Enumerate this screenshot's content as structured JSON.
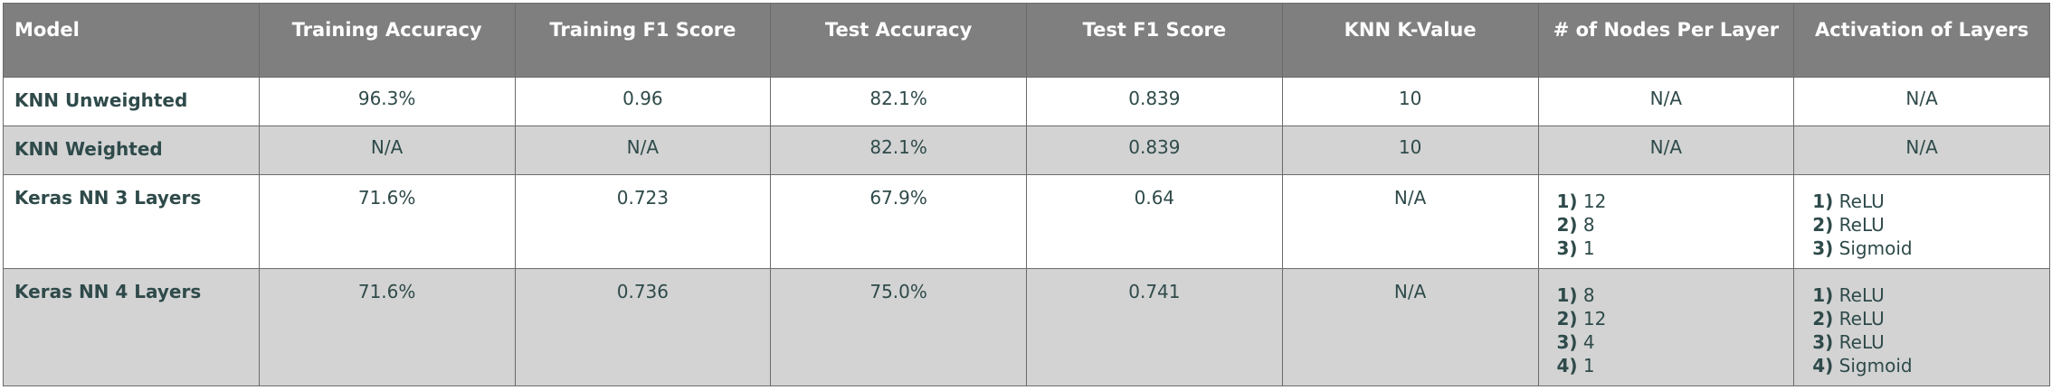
{
  "headers": [
    "Model",
    "Training Accuracy",
    "Training F1 Score",
    "Test Accuracy",
    "Test F1 Score",
    "KNN K-Value",
    "# of Nodes Per Layer",
    "Activation of Layers"
  ],
  "rows": [
    {
      "model": "KNN Unweighted",
      "training_accuracy": "96.3%",
      "training_f1": "0.96",
      "test_accuracy": "82.1%",
      "test_f1": "0.839",
      "knn_k": "10",
      "nodes": "N/A",
      "activation": "N/A"
    },
    {
      "model": "KNN Weighted",
      "training_accuracy": "N/A",
      "training_f1": "N/A",
      "test_accuracy": "82.1%",
      "test_f1": "0.839",
      "knn_k": "10",
      "nodes": "N/A",
      "activation": "N/A"
    },
    {
      "model": "Keras NN 3 Layers",
      "training_accuracy": "71.6%",
      "training_f1": "0.723",
      "test_accuracy": "67.9%",
      "test_f1": "0.64",
      "knn_k": "N/A",
      "nodes_list": [
        {
          "n": "1)",
          "v": "12"
        },
        {
          "n": "2)",
          "v": "8"
        },
        {
          "n": "3)",
          "v": "1"
        }
      ],
      "activation_list": [
        {
          "n": "1)",
          "v": "ReLU"
        },
        {
          "n": "2)",
          "v": "ReLU"
        },
        {
          "n": "3)",
          "v": "Sigmoid"
        }
      ]
    },
    {
      "model": "Keras NN 4 Layers",
      "training_accuracy": "71.6%",
      "training_f1": "0.736",
      "test_accuracy": "75.0%",
      "test_f1": "0.741",
      "knn_k": "N/A",
      "nodes_list": [
        {
          "n": "1)",
          "v": "8"
        },
        {
          "n": "2)",
          "v": "12"
        },
        {
          "n": "3)",
          "v": "4"
        },
        {
          "n": "4)",
          "v": "1"
        }
      ],
      "activation_list": [
        {
          "n": "1)",
          "v": "ReLU"
        },
        {
          "n": "2)",
          "v": "ReLU"
        },
        {
          "n": "3)",
          "v": "ReLU"
        },
        {
          "n": "4)",
          "v": "Sigmoid"
        }
      ]
    }
  ],
  "colors": {
    "header_bg": "#7f7f7f",
    "header_text": "#ffffff",
    "row_alt_bg": "#d3d3d3",
    "body_text": "#2f4a4a"
  }
}
